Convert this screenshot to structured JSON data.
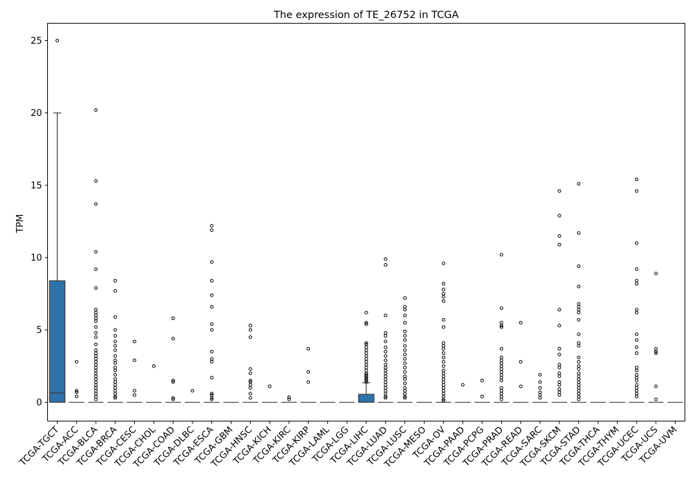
{
  "chart_data": {
    "type": "box",
    "title": "The expression of TE_26752 in TCGA",
    "xlabel": "",
    "ylabel": "TPM",
    "ylim": [
      -1.3,
      26.2
    ],
    "yticks": [
      0,
      5,
      10,
      15,
      20,
      25
    ],
    "grid": false,
    "box_color": "#2e72ab",
    "categories": [
      "TCGA-TGCT",
      "TCGA-ACC",
      "TCGA-BLCA",
      "TCGA-BRCA",
      "TCGA-CESC",
      "TCGA-CHOL",
      "TCGA-COAD",
      "TCGA-DLBC",
      "TCGA-ESCA",
      "TCGA-GBM",
      "TCGA-HNSC",
      "TCGA-KICH",
      "TCGA-KIRC",
      "TCGA-KIRP",
      "TCGA-LAML",
      "TCGA-LGG",
      "TCGA-LIHC",
      "TCGA-LUAD",
      "TCGA-LUSC",
      "TCGA-MESO",
      "TCGA-OV",
      "TCGA-PAAD",
      "TCGA-PCPG",
      "TCGA-PRAD",
      "TCGA-READ",
      "TCGA-SARC",
      "TCGA-SKCM",
      "TCGA-STAD",
      "TCGA-THCA",
      "TCGA-THYM",
      "TCGA-UCEC",
      "TCGA-UCS",
      "TCGA-UVM"
    ],
    "boxes": [
      {
        "q1": 0,
        "median": 0.65,
        "q3": 8.4,
        "whisker_low": 0,
        "whisker_high": 20.0,
        "outliers": [
          25.0
        ]
      },
      {
        "q1": 0,
        "median": 0,
        "q3": 0,
        "whisker_low": 0,
        "whisker_high": 0,
        "outliers": [
          2.8,
          0.8,
          0.7,
          0.4
        ]
      },
      {
        "q1": 0,
        "median": 0,
        "q3": 0,
        "whisker_low": 0,
        "whisker_high": 0,
        "outliers": [
          20.2,
          15.3,
          13.7,
          10.4,
          9.2,
          7.9,
          6.4,
          6.2,
          6.0,
          5.8,
          5.6,
          5.2,
          4.8,
          4.5,
          4.0,
          3.6,
          3.4,
          3.2,
          3.0,
          2.8,
          2.6,
          2.4,
          2.2,
          2.0,
          1.8,
          1.6,
          1.4,
          1.2,
          1.0,
          0.8,
          0.6,
          0.4,
          0.2
        ]
      },
      {
        "q1": 0,
        "median": 0,
        "q3": 0,
        "whisker_low": 0,
        "whisker_high": 0,
        "outliers": [
          8.4,
          7.7,
          5.9,
          5.0,
          4.6,
          4.2,
          3.9,
          3.6,
          3.2,
          2.9,
          2.7,
          2.4,
          2.2,
          1.9,
          1.6,
          1.4,
          1.2,
          1.0,
          0.8,
          0.6,
          0.4,
          0.3
        ]
      },
      {
        "q1": 0,
        "median": 0,
        "q3": 0,
        "whisker_low": 0,
        "whisker_high": 0,
        "outliers": [
          4.2,
          2.9,
          0.8,
          0.5
        ]
      },
      {
        "q1": 0,
        "median": 0,
        "q3": 0,
        "whisker_low": 0,
        "whisker_high": 0,
        "outliers": [
          2.5
        ]
      },
      {
        "q1": 0,
        "median": 0,
        "q3": 0,
        "whisker_low": 0,
        "whisker_high": 0,
        "outliers": [
          5.8,
          4.4,
          1.5,
          1.4,
          0.3,
          0.2
        ]
      },
      {
        "q1": 0,
        "median": 0,
        "q3": 0,
        "whisker_low": 0,
        "whisker_high": 0,
        "outliers": [
          0.8
        ]
      },
      {
        "q1": 0,
        "median": 0,
        "q3": 0,
        "whisker_low": 0,
        "whisker_high": 0,
        "outliers": [
          12.2,
          11.9,
          9.7,
          8.4,
          7.4,
          6.6,
          5.4,
          5.0,
          3.5,
          3.0,
          2.8,
          1.7,
          0.6,
          0.5,
          0.3,
          0.2
        ]
      },
      {
        "q1": 0,
        "median": 0,
        "q3": 0,
        "whisker_low": 0,
        "whisker_high": 0,
        "outliers": []
      },
      {
        "q1": 0,
        "median": 0,
        "q3": 0,
        "whisker_low": 0,
        "whisker_high": 0,
        "outliers": [
          5.3,
          5.0,
          4.5,
          2.3,
          2.0,
          1.5,
          1.4,
          1.2,
          1.0,
          0.6,
          0.3
        ]
      },
      {
        "q1": 0,
        "median": 0,
        "q3": 0,
        "whisker_low": 0,
        "whisker_high": 0,
        "outliers": [
          1.1
        ]
      },
      {
        "q1": 0,
        "median": 0,
        "q3": 0,
        "whisker_low": 0,
        "whisker_high": 0,
        "outliers": [
          0.35,
          0.2
        ]
      },
      {
        "q1": 0,
        "median": 0,
        "q3": 0,
        "whisker_low": 0,
        "whisker_high": 0,
        "outliers": [
          3.7,
          2.1,
          1.4
        ]
      },
      {
        "q1": 0,
        "median": 0,
        "q3": 0,
        "whisker_low": 0,
        "whisker_high": 0,
        "outliers": []
      },
      {
        "q1": 0,
        "median": 0,
        "q3": 0,
        "whisker_low": 0,
        "whisker_high": 0,
        "outliers": []
      },
      {
        "q1": 0,
        "median": 0,
        "q3": 0.55,
        "whisker_low": 0,
        "whisker_high": 1.35,
        "outliers": [
          6.2,
          5.5,
          5.4,
          4.1,
          4.0,
          3.8,
          3.6,
          3.4,
          3.2,
          3.0,
          2.8,
          2.6,
          2.4,
          2.2,
          2.0,
          1.9,
          1.8,
          1.7,
          1.6,
          1.5,
          1.4
        ]
      },
      {
        "q1": 0,
        "median": 0,
        "q3": 0,
        "whisker_low": 0,
        "whisker_high": 0,
        "outliers": [
          9.9,
          9.5,
          6.0,
          4.8,
          4.6,
          4.2,
          3.8,
          3.5,
          3.2,
          2.9,
          2.6,
          2.4,
          2.2,
          2.0,
          1.8,
          1.6,
          1.4,
          1.2,
          1.0,
          0.8,
          0.6,
          0.4,
          0.3
        ]
      },
      {
        "q1": 0,
        "median": 0,
        "q3": 0,
        "whisker_low": 0,
        "whisker_high": 0,
        "outliers": [
          7.2,
          6.6,
          6.4,
          6.0,
          5.5,
          4.9,
          4.6,
          4.3,
          3.9,
          3.6,
          3.3,
          3.0,
          2.7,
          2.4,
          2.1,
          1.8,
          1.6,
          1.3,
          1.0,
          0.8,
          0.6,
          0.4,
          0.3
        ]
      },
      {
        "q1": 0,
        "median": 0,
        "q3": 0,
        "whisker_low": 0,
        "whisker_high": 0,
        "outliers": []
      },
      {
        "q1": 0,
        "median": 0,
        "q3": 0,
        "whisker_low": 0,
        "whisker_high": 0,
        "outliers": [
          9.6,
          8.2,
          7.8,
          7.5,
          7.3,
          7.0,
          5.7,
          5.2,
          4.1,
          3.9,
          3.7,
          3.4,
          3.1,
          2.8,
          2.5,
          2.2,
          2.0,
          1.8,
          1.6,
          1.4,
          1.2,
          1.0,
          0.8,
          0.6,
          0.4,
          0.2,
          0.1
        ]
      },
      {
        "q1": 0,
        "median": 0,
        "q3": 0,
        "whisker_low": 0,
        "whisker_high": 0,
        "outliers": [
          1.2
        ]
      },
      {
        "q1": 0,
        "median": 0,
        "q3": 0,
        "whisker_low": 0,
        "whisker_high": 0,
        "outliers": [
          1.5,
          0.4
        ]
      },
      {
        "q1": 0,
        "median": 0,
        "q3": 0,
        "whisker_low": 0,
        "whisker_high": 0,
        "outliers": [
          10.2,
          6.5,
          5.5,
          5.3,
          5.2,
          3.7,
          3.1,
          2.9,
          2.7,
          2.5,
          2.3,
          2.1,
          1.9,
          1.7,
          1.5,
          1.0,
          0.8,
          0.6,
          0.4,
          0.2
        ]
      },
      {
        "q1": 0,
        "median": 0,
        "q3": 0,
        "whisker_low": 0,
        "whisker_high": 0,
        "outliers": [
          5.5,
          2.8,
          1.1
        ]
      },
      {
        "q1": 0,
        "median": 0,
        "q3": 0,
        "whisker_low": 0,
        "whisker_high": 0,
        "outliers": [
          1.9,
          1.4,
          1.0,
          0.7,
          0.5,
          0.3
        ]
      },
      {
        "q1": 0,
        "median": 0,
        "q3": 0,
        "whisker_low": 0,
        "whisker_high": 0,
        "outliers": [
          14.6,
          12.9,
          11.5,
          10.9,
          6.4,
          5.3,
          3.7,
          3.3,
          2.6,
          2.4,
          2.0,
          1.8,
          1.4,
          1.2,
          0.9,
          0.7,
          0.5
        ]
      },
      {
        "q1": 0,
        "median": 0,
        "q3": 0,
        "whisker_low": 0,
        "whisker_high": 0,
        "outliers": [
          15.1,
          11.7,
          9.4,
          8.0,
          6.8,
          6.6,
          6.4,
          6.2,
          5.7,
          4.7,
          4.1,
          3.9,
          3.1,
          2.8,
          2.5,
          2.3,
          2.0,
          1.8,
          1.6,
          1.4,
          1.2,
          1.0,
          0.8,
          0.6,
          0.4,
          0.2
        ]
      },
      {
        "q1": 0,
        "median": 0,
        "q3": 0,
        "whisker_low": 0,
        "whisker_high": 0,
        "outliers": []
      },
      {
        "q1": 0,
        "median": 0,
        "q3": 0,
        "whisker_low": 0,
        "whisker_high": 0,
        "outliers": []
      },
      {
        "q1": 0,
        "median": 0,
        "q3": 0,
        "whisker_low": 0,
        "whisker_high": 0,
        "outliers": [
          15.4,
          14.6,
          11.0,
          9.2,
          8.4,
          8.2,
          6.4,
          6.2,
          4.7,
          4.3,
          3.8,
          3.4,
          2.4,
          2.2,
          1.9,
          1.7,
          1.5,
          1.2,
          1.0,
          0.8,
          0.6,
          0.4
        ]
      },
      {
        "q1": 0,
        "median": 0,
        "q3": 0,
        "whisker_low": 0,
        "whisker_high": 0,
        "outliers": [
          8.9,
          3.7,
          3.5,
          3.4,
          1.1,
          0.2
        ]
      },
      {
        "q1": 0,
        "median": 0,
        "q3": 0,
        "whisker_low": 0,
        "whisker_high": 0,
        "outliers": []
      }
    ]
  }
}
